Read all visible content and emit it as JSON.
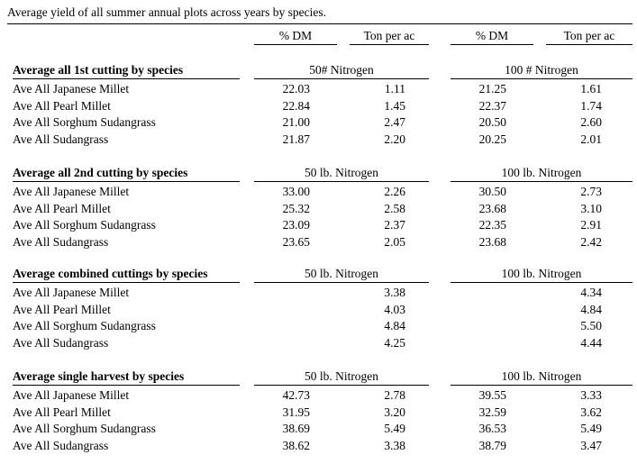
{
  "caption": "Average yield of all summer annual plots across years by species.",
  "headers": [
    "% DM",
    "Ton per ac",
    "% DM",
    "Ton per ac"
  ],
  "sections": [
    {
      "title": "Average all 1st cutting by species",
      "group_left": "50# Nitrogen",
      "group_right": "100 # Nitrogen",
      "rows": [
        {
          "label": "Ave All Japanese Millet",
          "dm1": "22.03",
          "ton1": "1.11",
          "dm2": "21.25",
          "ton2": "1.61"
        },
        {
          "label": "Ave All Pearl Millet",
          "dm1": "22.84",
          "ton1": "1.45",
          "dm2": "22.37",
          "ton2": "1.74"
        },
        {
          "label": "Ave All Sorghum Sudangrass",
          "dm1": "21.00",
          "ton1": "2.47",
          "dm2": "20.50",
          "ton2": "2.60"
        },
        {
          "label": "Ave All Sudangrass",
          "dm1": "21.87",
          "ton1": "2.20",
          "dm2": "20.25",
          "ton2": "2.01"
        }
      ]
    },
    {
      "title": "Average all 2nd cutting by species",
      "group_left": "50 lb. Nitrogen",
      "group_right": "100 lb. Nitrogen",
      "rows": [
        {
          "label": "Ave All Japanese Millet",
          "dm1": "33.00",
          "ton1": "2.26",
          "dm2": "30.50",
          "ton2": "2.73"
        },
        {
          "label": "Ave All Pearl Millet",
          "dm1": "25.32",
          "ton1": "2.58",
          "dm2": "23.68",
          "ton2": "3.10"
        },
        {
          "label": "Ave All Sorghum Sudangrass",
          "dm1": "23.09",
          "ton1": "2.37",
          "dm2": "22.35",
          "ton2": "2.91"
        },
        {
          "label": "Ave All Sudangrass",
          "dm1": "23.65",
          "ton1": "2.05",
          "dm2": "23.68",
          "ton2": "2.42"
        }
      ]
    },
    {
      "title": "Average combined cuttings by species",
      "group_left": "50 lb. Nitrogen",
      "group_right": "100 lb. Nitrogen",
      "rows": [
        {
          "label": "Ave All Japanese Millet",
          "dm1": "",
          "ton1": "3.38",
          "dm2": "",
          "ton2": "4.34"
        },
        {
          "label": "Ave All Pearl Millet",
          "dm1": "",
          "ton1": "4.03",
          "dm2": "",
          "ton2": "4.84"
        },
        {
          "label": "Ave All Sorghum Sudangrass",
          "dm1": "",
          "ton1": "4.84",
          "dm2": "",
          "ton2": "5.50"
        },
        {
          "label": "Ave All Sudangrass",
          "dm1": "",
          "ton1": "4.25",
          "dm2": "",
          "ton2": "4.44"
        }
      ]
    },
    {
      "title": "Average single harvest by species",
      "group_left": "50 lb. Nitrogen",
      "group_right": "100 lb. Nitrogen",
      "rows": [
        {
          "label": "Ave All Japanese Millet",
          "dm1": "42.73",
          "ton1": "2.78",
          "dm2": "39.55",
          "ton2": "3.33"
        },
        {
          "label": "Ave All Pearl Millet",
          "dm1": "31.95",
          "ton1": "3.20",
          "dm2": "32.59",
          "ton2": "3.62"
        },
        {
          "label": "Ave All Sorghum Sudangrass",
          "dm1": "38.69",
          "ton1": "5.49",
          "dm2": "36.53",
          "ton2": "5.49"
        },
        {
          "label": "Ave All Sudangrass",
          "dm1": "38.62",
          "ton1": "3.38",
          "dm2": "38.79",
          "ton2": "3.47"
        }
      ]
    }
  ]
}
